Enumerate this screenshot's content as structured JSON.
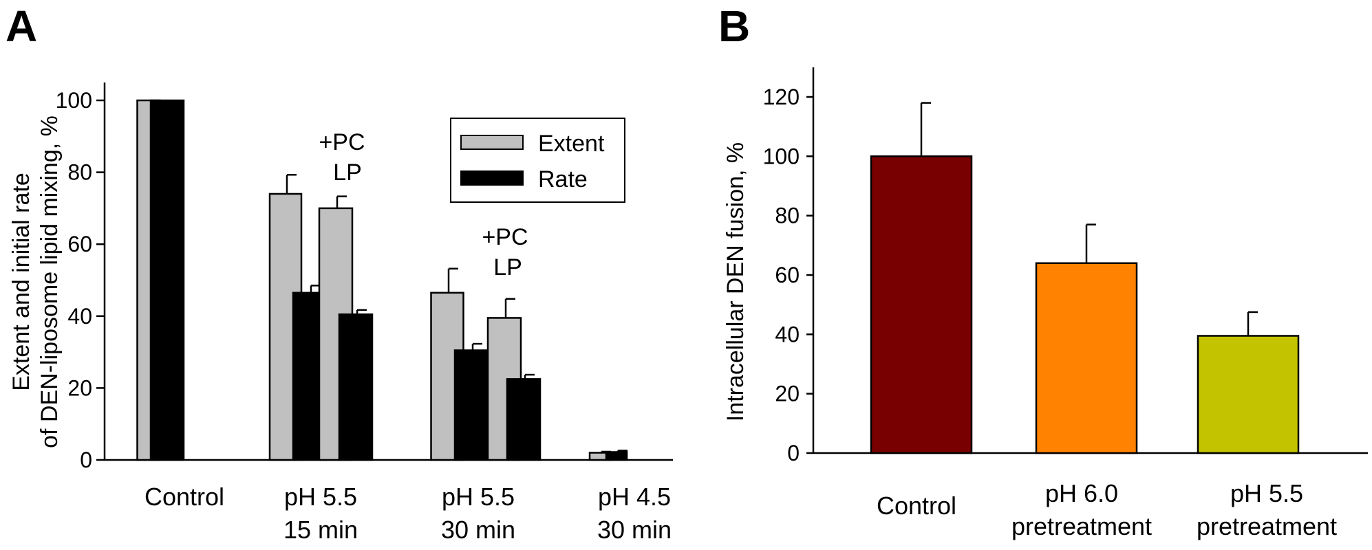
{
  "panels": {
    "A": {
      "label": "A",
      "ylabel_line1": "Extent and initial rate",
      "ylabel_line2": "of DEN-liposome lipid mixing, %",
      "legend": {
        "extent": "Extent",
        "rate": "Rate"
      },
      "annotations": [
        {
          "line1": "+PC",
          "line2": "LP"
        },
        {
          "line1": "+PC",
          "line2": "LP"
        }
      ]
    },
    "B": {
      "label": "B",
      "ylabel": "Intracellular DEN fusion, %"
    }
  },
  "chart_data": [
    {
      "type": "bar",
      "panel": "A",
      "ylabel": "Extent and initial rate of DEN-liposome lipid mixing, %",
      "ylim": [
        0,
        100
      ],
      "yticks": [
        0,
        20,
        40,
        60,
        80,
        100
      ],
      "group_labels": [
        {
          "line1": "Control",
          "line2": ""
        },
        {
          "line1": "pH 5.5",
          "line2": "15 min"
        },
        {
          "line1": "pH 5.5",
          "line2": "30 min"
        },
        {
          "line1": "pH 4.5",
          "line2": "30 min"
        }
      ],
      "bars": [
        {
          "group": 0,
          "series": "Extent",
          "value": 100,
          "error": 0
        },
        {
          "group": 0,
          "series": "Rate",
          "value": 100,
          "error": 0
        },
        {
          "group": 1,
          "series": "Extent",
          "value": 74,
          "error": 5.3
        },
        {
          "group": 1,
          "series": "Rate",
          "value": 46.5,
          "error": 2
        },
        {
          "group": 1,
          "series": "Extent",
          "value": 70,
          "error": 3.3,
          "note": "+PC LP"
        },
        {
          "group": 1,
          "series": "Rate",
          "value": 40.5,
          "error": 1.2,
          "note": "+PC LP"
        },
        {
          "group": 2,
          "series": "Extent",
          "value": 46.5,
          "error": 6.7
        },
        {
          "group": 2,
          "series": "Rate",
          "value": 30.5,
          "error": 1.8
        },
        {
          "group": 2,
          "series": "Extent",
          "value": 39.5,
          "error": 5.3,
          "note": "+PC LP"
        },
        {
          "group": 2,
          "series": "Rate",
          "value": 22.5,
          "error": 1.2,
          "note": "+PC LP"
        },
        {
          "group": 3,
          "series": "Extent",
          "value": 2,
          "error": 0.3
        },
        {
          "group": 3,
          "series": "Rate",
          "value": 2.2,
          "error": 0.4
        }
      ],
      "series": [
        {
          "name": "Extent",
          "color": "#c0c0c0"
        },
        {
          "name": "Rate",
          "color": "#000000"
        }
      ],
      "legend_position": "top-right"
    },
    {
      "type": "bar",
      "panel": "B",
      "ylabel": "Intracellular DEN fusion, %",
      "ylim": [
        0,
        120
      ],
      "yticks": [
        0,
        20,
        40,
        60,
        80,
        100,
        120
      ],
      "categories": [
        {
          "line1": "Control",
          "line2": ""
        },
        {
          "line1": "pH  6.0",
          "line2": "pretreatment"
        },
        {
          "line1": "pH  5.5",
          "line2": "pretreatment"
        }
      ],
      "values": [
        100,
        64,
        39.5
      ],
      "errors": [
        18,
        13,
        8
      ],
      "colors": [
        "#780000",
        "#ff8200",
        "#c3c300"
      ]
    }
  ]
}
